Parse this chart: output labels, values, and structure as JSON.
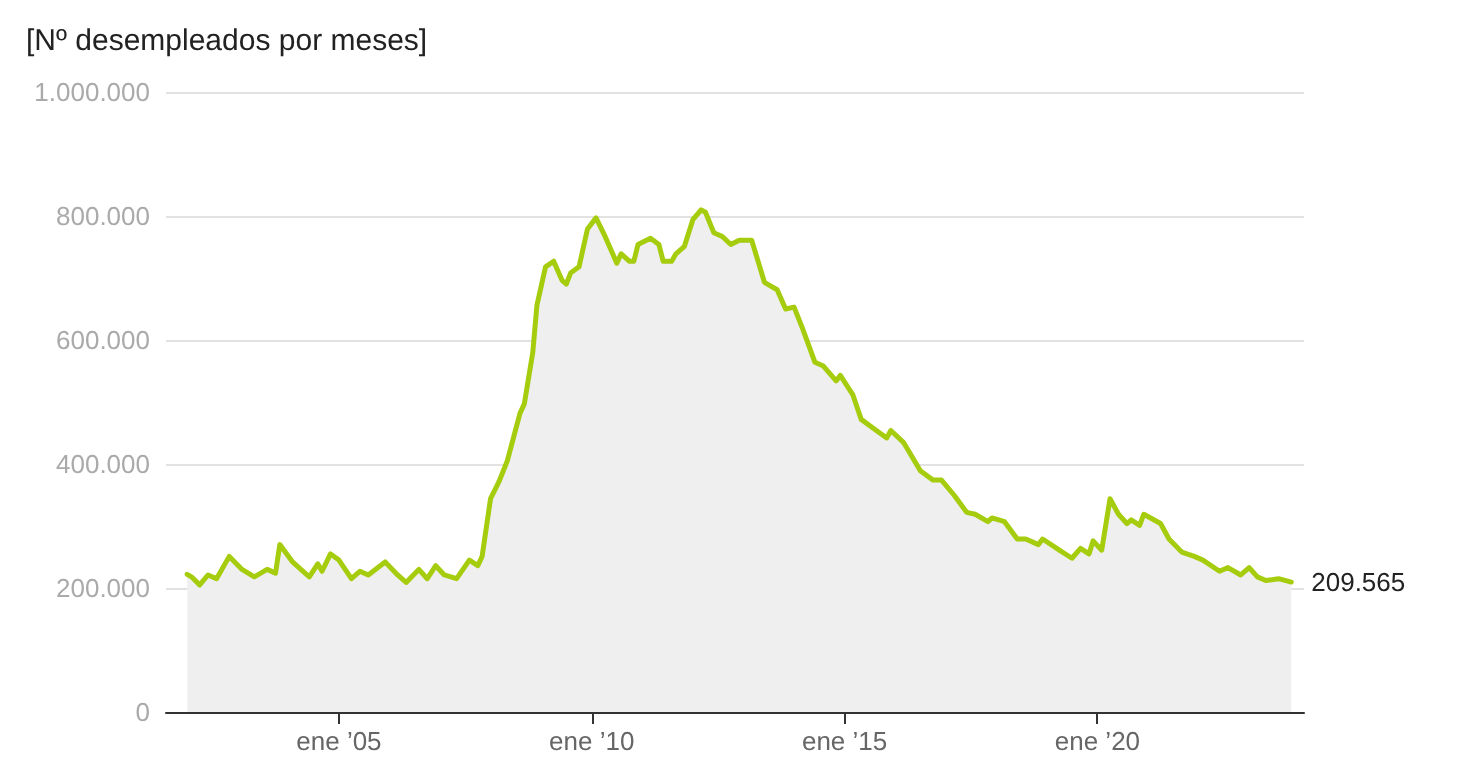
{
  "chart_data": {
    "type": "area",
    "title": "[Nº desempleados por meses]",
    "x": [
      "2002-01",
      "2002-02",
      "2002-04",
      "2002-06",
      "2002-08",
      "2002-11",
      "2003-02",
      "2003-05",
      "2003-08",
      "2003-10",
      "2003-11",
      "2004-02",
      "2004-04",
      "2004-06",
      "2004-08",
      "2004-09",
      "2004-11",
      "2005-01",
      "2005-04",
      "2005-06",
      "2005-08",
      "2005-12",
      "2006-03",
      "2006-05",
      "2006-08",
      "2006-10",
      "2006-12",
      "2007-02",
      "2007-05",
      "2007-08",
      "2007-10",
      "2007-11",
      "2008-01",
      "2008-03",
      "2008-05",
      "2008-08",
      "2008-09",
      "2008-11",
      "2008-12",
      "2009-02",
      "2009-04",
      "2009-06",
      "2009-07",
      "2009-08",
      "2009-10",
      "2009-12",
      "2010-02",
      "2010-04",
      "2010-07",
      "2010-08",
      "2010-10",
      "2010-11",
      "2010-12",
      "2011-03",
      "2011-05",
      "2011-06",
      "2011-08",
      "2011-09",
      "2011-11",
      "2012-01",
      "2012-03",
      "2012-04",
      "2012-06",
      "2012-08",
      "2012-10",
      "2012-12",
      "2013-03",
      "2013-06",
      "2013-09",
      "2013-11",
      "2014-01",
      "2014-03",
      "2014-06",
      "2014-08",
      "2014-11",
      "2014-12",
      "2015-03",
      "2015-05",
      "2015-08",
      "2015-11",
      "2015-12",
      "2016-03",
      "2016-07",
      "2016-10",
      "2016-12",
      "2017-03",
      "2017-06",
      "2017-08",
      "2017-11",
      "2017-12",
      "2018-03",
      "2018-06",
      "2018-08",
      "2018-11",
      "2018-12",
      "2019-04",
      "2019-07",
      "2019-09",
      "2019-11",
      "2019-12",
      "2020-02",
      "2020-04",
      "2020-06",
      "2020-08",
      "2020-09",
      "2020-11",
      "2020-12",
      "2021-04",
      "2021-06",
      "2021-09",
      "2021-12",
      "2022-02",
      "2022-06",
      "2022-08",
      "2022-11",
      "2023-01",
      "2023-03",
      "2023-05",
      "2023-08",
      "2023-11"
    ],
    "series": [
      {
        "color": "#a6cc0e",
        "values": [
          222000,
          218000,
          205000,
          221000,
          215000,
          251000,
          230000,
          218000,
          230000,
          224000,
          270000,
          242000,
          230000,
          218000,
          239000,
          227000,
          255000,
          245000,
          215000,
          227000,
          221000,
          242000,
          221000,
          209000,
          230000,
          215000,
          236000,
          221000,
          215000,
          245000,
          236000,
          251000,
          344000,
          371000,
          405000,
          482000,
          497000,
          580000,
          656000,
          718000,
          727000,
          696000,
          690000,
          708000,
          718000,
          779000,
          797000,
          770000,
          724000,
          739000,
          727000,
          727000,
          754000,
          764000,
          754000,
          727000,
          727000,
          739000,
          751000,
          794000,
          810000,
          806000,
          773000,
          767000,
          754000,
          761000,
          761000,
          693000,
          681000,
          650000,
          653000,
          620000,
          564000,
          558000,
          534000,
          543000,
          512000,
          472000,
          457000,
          442000,
          454000,
          435000,
          389000,
          374000,
          374000,
          350000,
          322000,
          319000,
          307000,
          313000,
          307000,
          279000,
          279000,
          270000,
          279000,
          261000,
          248000,
          264000,
          255000,
          276000,
          261000,
          344000,
          319000,
          304000,
          310000,
          301000,
          319000,
          304000,
          279000,
          258000,
          251000,
          245000,
          227000,
          233000,
          221000,
          233000,
          218000,
          212000,
          215000,
          209565
        ]
      }
    ],
    "xlim": [
      "2001-08",
      "2024-02"
    ],
    "xticks": [
      {
        "value": "2005-01",
        "label": "ene ’05"
      },
      {
        "value": "2010-01",
        "label": "ene ’10"
      },
      {
        "value": "2015-01",
        "label": "ene ’15"
      },
      {
        "value": "2020-01",
        "label": "ene ’20"
      }
    ],
    "ylim": [
      0,
      1000000
    ],
    "yticks": [
      {
        "value": 0,
        "label": "0"
      },
      {
        "value": 200000,
        "label": "200.000"
      },
      {
        "value": 400000,
        "label": "400.000"
      },
      {
        "value": 600000,
        "label": "600.000"
      },
      {
        "value": 800000,
        "label": "800.000"
      },
      {
        "value": 1000000,
        "label": "1.000.000"
      }
    ],
    "grid": "y",
    "annotations": [
      {
        "text": "209.565",
        "x": "2023-11",
        "y": 209565
      }
    ]
  }
}
